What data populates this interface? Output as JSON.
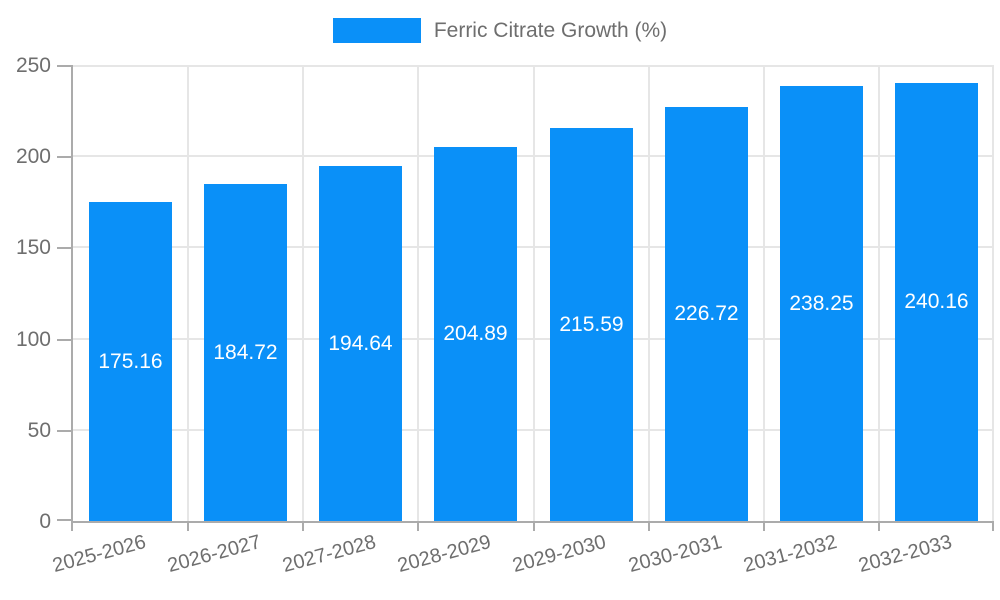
{
  "chart_data": {
    "type": "bar",
    "legend": "Ferric Citrate Growth (%)",
    "legend_position": "top-center",
    "categories": [
      "2025-2026",
      "2026-2027",
      "2027-2028",
      "2028-2029",
      "2029-2030",
      "2030-2031",
      "2031-2032",
      "2032-2033"
    ],
    "series": [
      {
        "name": "Ferric Citrate Growth (%)",
        "values": [
          175.16,
          184.72,
          194.64,
          204.89,
          215.59,
          226.72,
          238.25,
          240.16
        ],
        "value_labels": [
          "175.16",
          "184.72",
          "194.64",
          "204.89",
          "215.59",
          "226.72",
          "238.25",
          "240.16"
        ]
      }
    ],
    "xlabel": "",
    "ylabel": "",
    "ylim": [
      0,
      250
    ],
    "yticks": [
      0,
      50,
      100,
      150,
      200,
      250
    ],
    "grid": true,
    "colors": {
      "bar": "#0a90f8",
      "grid": "#e6e6e6",
      "axis": "#ababab",
      "tick_text": "#6e6e6e",
      "value_text": "#ffffff"
    }
  }
}
